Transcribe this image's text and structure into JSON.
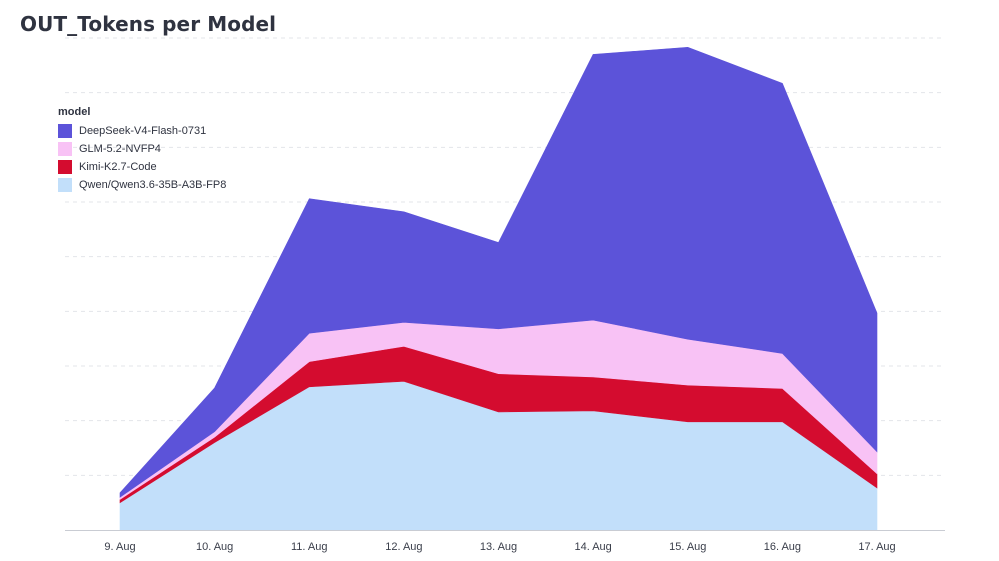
{
  "chart_data": {
    "type": "area",
    "stacked": true,
    "title": "OUT_Tokens per Model",
    "xlabel": "",
    "ylabel": "",
    "categories": [
      "9. Aug",
      "10. Aug",
      "11. Aug",
      "12. Aug",
      "13. Aug",
      "14. Aug",
      "15. Aug",
      "16. Aug",
      "17. Aug"
    ],
    "ylim": [
      0,
      900
    ],
    "grid": true,
    "legend": {
      "title": "model",
      "placement": "top-left"
    },
    "series": [
      {
        "name": "Qwen/Qwen3.6-35B-A3B-FP8",
        "color": "#c2dffa",
        "values": [
          50,
          160,
          262,
          272,
          216,
          218,
          198,
          198,
          77
        ]
      },
      {
        "name": "Kimi-K2.7-Code",
        "color": "#d40c2f",
        "values": [
          6,
          10,
          46,
          64,
          70,
          62,
          67,
          61,
          26
        ]
      },
      {
        "name": "GLM-5.2-NVFP4",
        "color": "#f8c2f5",
        "values": [
          4,
          10,
          52,
          44,
          82,
          104,
          84,
          64,
          40
        ]
      },
      {
        "name": "DeepSeek-V4-Flash-0731",
        "color": "#5c53d9",
        "values": [
          8,
          80,
          246,
          202,
          158,
          486,
          534,
          494,
          254
        ]
      }
    ]
  }
}
